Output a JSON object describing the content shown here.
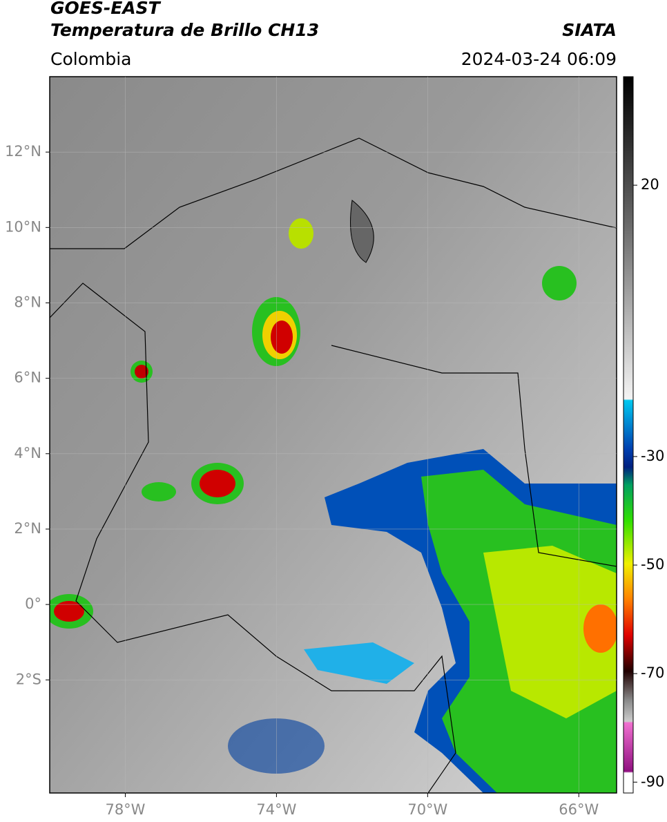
{
  "header": {
    "title": "GOES-EAST",
    "subtitle": "Temperatura de Brillo CH13",
    "source": "SIATA",
    "region": "Colombia",
    "datetime": "2024-03-24 06:09"
  },
  "map": {
    "xlim": [
      -80,
      -65
    ],
    "ylim": [
      -5,
      14
    ],
    "xticks": [
      {
        "value": -78,
        "label": "78°W"
      },
      {
        "value": -74,
        "label": "74°W"
      },
      {
        "value": -70,
        "label": "70°W"
      },
      {
        "value": -66,
        "label": "66°W"
      }
    ],
    "yticks": [
      {
        "value": -2,
        "label": "2°S"
      },
      {
        "value": 0,
        "label": "0°"
      },
      {
        "value": 2,
        "label": "2°N"
      },
      {
        "value": 4,
        "label": "4°N"
      },
      {
        "value": 6,
        "label": "6°N"
      },
      {
        "value": 8,
        "label": "8°N"
      },
      {
        "value": 10,
        "label": "10°N"
      },
      {
        "value": 12,
        "label": "12°N"
      }
    ]
  },
  "colorbar": {
    "lim": [
      -92,
      40
    ],
    "ticks": [
      20,
      -30,
      -50,
      -70,
      -90
    ]
  }
}
